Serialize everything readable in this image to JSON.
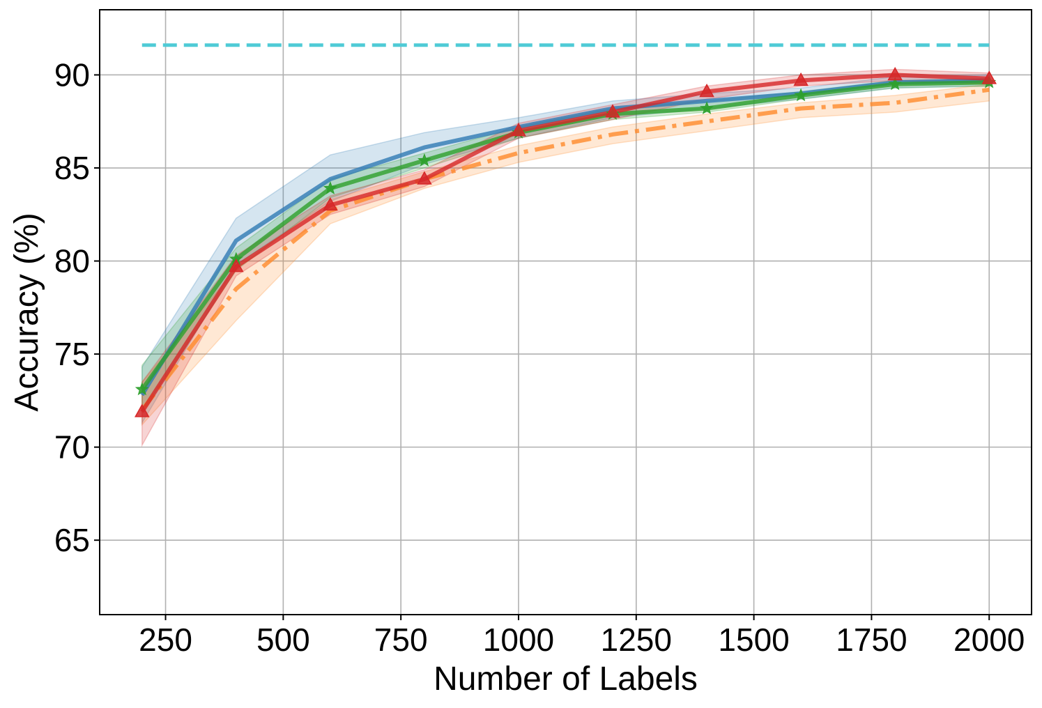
{
  "chart_data": {
    "type": "line",
    "xlabel": "Number of Labels",
    "ylabel": "Accuracy (%)",
    "xlim": [
      110,
      2090
    ],
    "ylim": [
      61,
      93.5
    ],
    "xticks": [
      250,
      500,
      750,
      1000,
      1250,
      1500,
      1750,
      2000
    ],
    "yticks": [
      65,
      70,
      75,
      80,
      85,
      90
    ],
    "grid": true,
    "x": [
      200,
      400,
      600,
      800,
      1000,
      1200,
      1400,
      1600,
      1800,
      2000
    ],
    "reference_line": {
      "value": 91.6,
      "x_range": [
        200,
        2000
      ],
      "color": "#4fcbd6",
      "style": "dashed"
    },
    "series": [
      {
        "color": "#2f7bb4",
        "style": "solid",
        "marker": "none",
        "values": [
          72.8,
          81.1,
          84.4,
          86.1,
          87.2,
          88.2,
          88.6,
          89.0,
          89.6,
          89.7
        ],
        "lower": [
          71.3,
          79.8,
          83.2,
          85.2,
          86.6,
          87.7,
          88.2,
          88.7,
          89.3,
          89.4
        ],
        "upper": [
          74.3,
          82.3,
          85.7,
          86.9,
          87.7,
          88.6,
          89.0,
          89.3,
          89.9,
          90.0
        ]
      },
      {
        "color": "#ff8a2a",
        "style": "dashdot",
        "marker": "none",
        "values": [
          72.0,
          78.5,
          82.7,
          84.4,
          85.8,
          86.8,
          87.5,
          88.2,
          88.5,
          89.2
        ],
        "lower": [
          71.2,
          76.8,
          82.0,
          83.9,
          85.3,
          86.3,
          87.0,
          87.7,
          88.0,
          88.6
        ],
        "upper": [
          73.5,
          79.6,
          83.3,
          84.8,
          86.2,
          87.2,
          87.9,
          88.5,
          88.9,
          89.5
        ]
      },
      {
        "color": "#2ea02c",
        "style": "solid",
        "marker": "star",
        "values": [
          73.1,
          80.1,
          83.9,
          85.4,
          86.9,
          87.9,
          88.2,
          88.9,
          89.5,
          89.6
        ],
        "lower": [
          71.9,
          79.5,
          83.4,
          85.0,
          86.6,
          87.6,
          88.0,
          88.7,
          89.3,
          89.4
        ],
        "upper": [
          74.4,
          80.7,
          84.4,
          85.8,
          87.2,
          88.2,
          88.6,
          89.1,
          89.7,
          89.8
        ]
      },
      {
        "color": "#d62728",
        "style": "solid",
        "marker": "triangle",
        "values": [
          71.9,
          79.7,
          83.0,
          84.4,
          87.0,
          88.0,
          89.1,
          89.7,
          90.0,
          89.8
        ],
        "lower": [
          70.1,
          79.2,
          82.5,
          84.0,
          86.6,
          87.6,
          88.7,
          89.4,
          89.7,
          89.5
        ],
        "upper": [
          73.5,
          80.3,
          83.5,
          84.9,
          87.4,
          88.4,
          89.4,
          90.0,
          90.3,
          90.1
        ]
      }
    ]
  }
}
